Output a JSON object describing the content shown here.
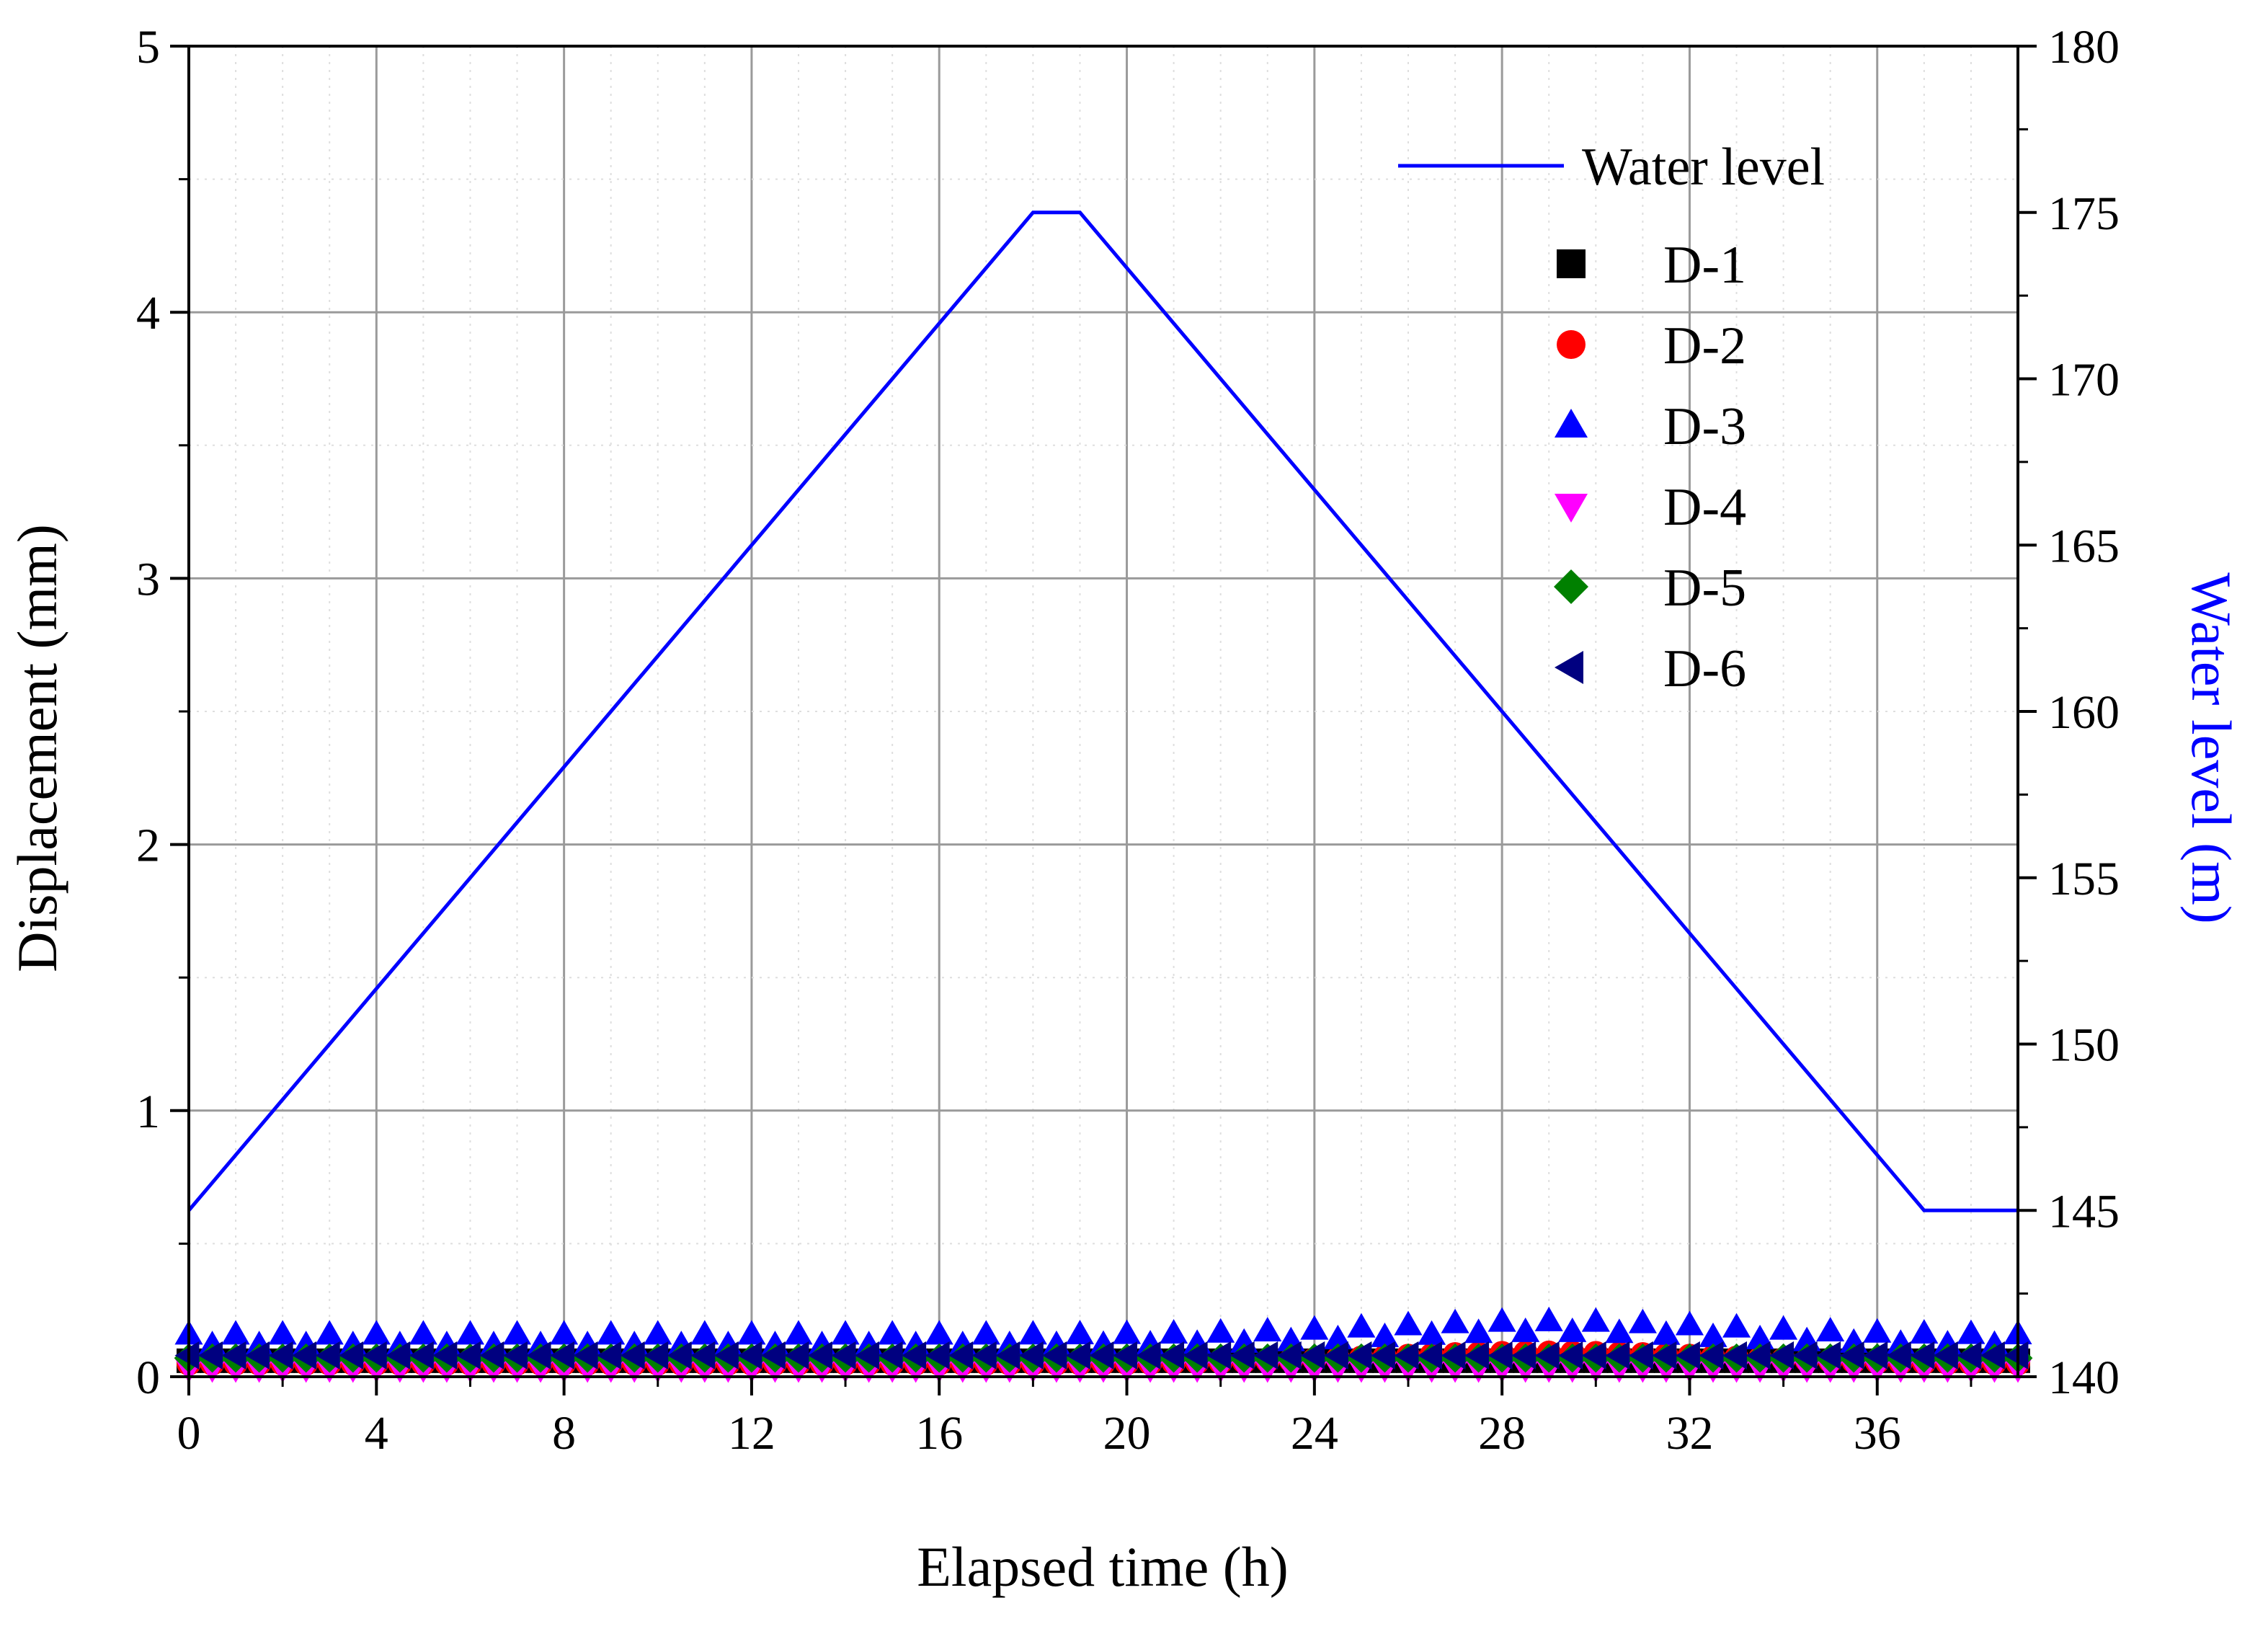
{
  "chart_data": {
    "type": "line",
    "title": "",
    "xlabel": "Elapsed time (h)",
    "ylabel": "Displacement (mm)",
    "y2label": "Water level (m)",
    "xlim": [
      0,
      39
    ],
    "ylim": [
      0,
      5
    ],
    "y2lim": [
      140,
      180
    ],
    "xticks": [
      "0",
      "4",
      "8",
      "12",
      "16",
      "20",
      "24",
      "28",
      "32",
      "36"
    ],
    "yticks": [
      "0",
      "1",
      "2",
      "3",
      "4",
      "5"
    ],
    "y2ticks": [
      "140",
      "145",
      "150",
      "155",
      "160",
      "165",
      "170",
      "175",
      "180"
    ],
    "grid": true,
    "legend_position": "top-right",
    "water_level": {
      "name": "Water level",
      "axis": "right",
      "color": "#0000ff",
      "x": [
        0,
        18,
        19,
        37,
        39
      ],
      "y": [
        145,
        175,
        175,
        145,
        145
      ]
    },
    "series": [
      {
        "name": "D-1",
        "marker": "square",
        "color": "#000000",
        "baseline": 0.06,
        "rise": 0.0,
        "ripple": 0.0
      },
      {
        "name": "D-2",
        "marker": "circle",
        "color": "#ff0000",
        "baseline": 0.05,
        "rise": 0.04,
        "ripple": 0.0
      },
      {
        "name": "D-3",
        "marker": "triangle-up",
        "color": "#0000ff",
        "baseline": 0.12,
        "rise": 0.05,
        "ripple": 0.04
      },
      {
        "name": "D-4",
        "marker": "triangle-down",
        "color": "#ff00ff",
        "baseline": 0.03,
        "rise": 0.0,
        "ripple": 0.0
      },
      {
        "name": "D-5",
        "marker": "diamond",
        "color": "#008000",
        "baseline": 0.07,
        "rise": 0.0,
        "ripple": 0.0
      },
      {
        "name": "D-6",
        "marker": "triangle-left",
        "color": "#000080",
        "baseline": 0.08,
        "rise": 0.0,
        "ripple": 0.0
      }
    ]
  }
}
